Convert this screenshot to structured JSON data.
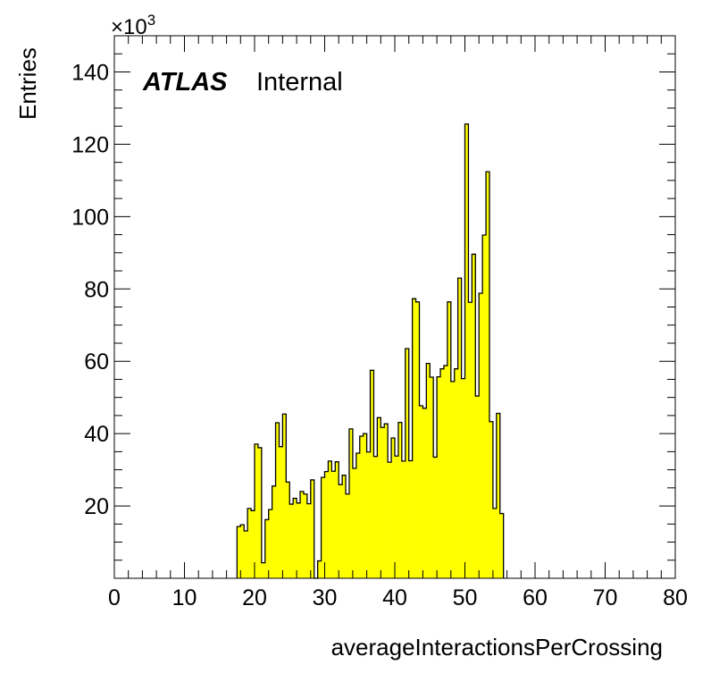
{
  "chart_data": {
    "type": "bar",
    "title": "",
    "xlabel": "averageInteractionsPerCrossing",
    "ylabel": "Entries",
    "y_multiplier": "×10",
    "y_multiplier_exp": "3",
    "xlim": [
      0,
      80
    ],
    "ylim": [
      0,
      150
    ],
    "grid": false,
    "legend": "none",
    "colors": {
      "fill": "#ffff00",
      "line": "#000000"
    },
    "annotation": {
      "experiment": "ATLAS",
      "status": "Internal"
    },
    "x_ticks": [
      0,
      10,
      20,
      30,
      40,
      50,
      60,
      70,
      80
    ],
    "x_tick_labels": [
      "0",
      "10",
      "20",
      "30",
      "40",
      "50",
      "60",
      "70",
      "80"
    ],
    "y_ticks": [
      20,
      40,
      60,
      80,
      100,
      120,
      140
    ],
    "y_tick_labels": [
      "20",
      "40",
      "60",
      "80",
      "100",
      "120",
      "140"
    ],
    "bin_width": 0.5,
    "x_start": 17.5,
    "values": [
      14.3,
      14.8,
      13.1,
      19.3,
      18.7,
      37.1,
      36.1,
      4.3,
      16.2,
      19.0,
      25.5,
      43.0,
      36.4,
      45.4,
      26.6,
      20.5,
      22.1,
      20.8,
      24.0,
      23.3,
      20.6,
      27.2,
      0.0,
      4.8,
      27.9,
      29.5,
      32.4,
      29.6,
      32.2,
      25.9,
      28.5,
      23.3,
      41.3,
      30.4,
      34.6,
      39.3,
      40.0,
      34.9,
      57.5,
      33.7,
      44.4,
      41.7,
      42.7,
      32.1,
      38.8,
      33.8,
      43.1,
      32.4,
      63.5,
      32.5,
      77.3,
      76.4,
      47.7,
      47.0,
      59.4,
      55.6,
      33.5,
      55.7,
      57.9,
      58.8,
      76.4,
      54.4,
      57.9,
      83.0,
      55.2,
      125.6,
      76.3,
      89.6,
      50.4,
      78.8,
      94.9,
      112.4,
      43.3,
      19.3,
      45.6,
      17.9
    ]
  }
}
